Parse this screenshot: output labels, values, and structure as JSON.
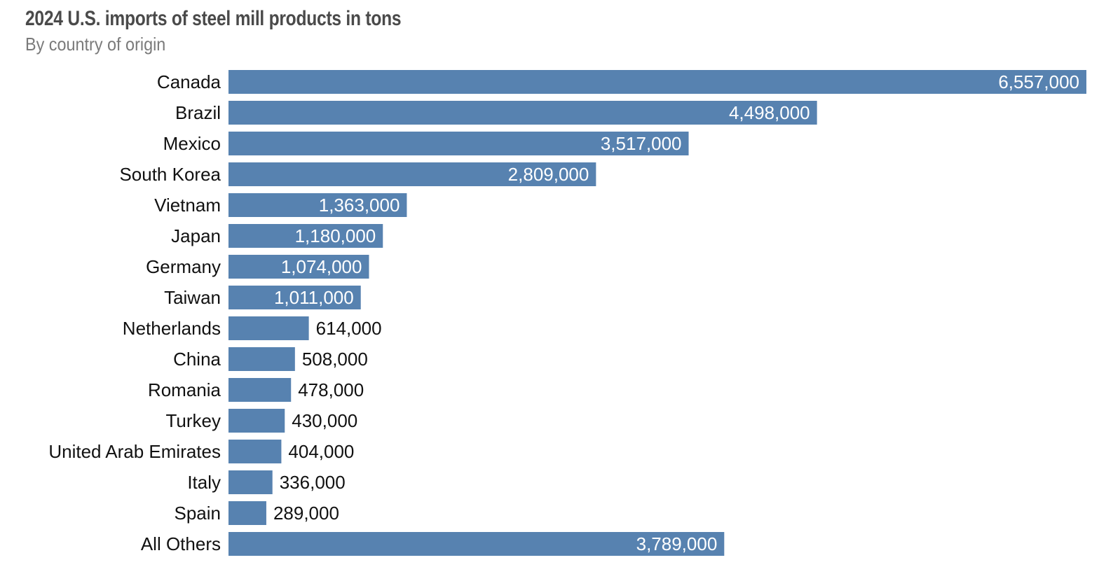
{
  "chart_data": {
    "type": "bar",
    "orientation": "horizontal",
    "title": "2024 U.S. imports of steel mill products in tons",
    "subtitle": "By country of origin",
    "categories": [
      "Canada",
      "Brazil",
      "Mexico",
      "South Korea",
      "Vietnam",
      "Japan",
      "Germany",
      "Taiwan",
      "Netherlands",
      "China",
      "Romania",
      "Turkey",
      "United Arab Emirates",
      "Italy",
      "Spain",
      "All Others"
    ],
    "values": [
      6557000,
      4498000,
      3517000,
      2809000,
      1363000,
      1180000,
      1074000,
      1011000,
      614000,
      508000,
      478000,
      430000,
      404000,
      336000,
      289000,
      3789000
    ],
    "value_labels": [
      "6,557,000",
      "4,498,000",
      "3,517,000",
      "2,809,000",
      "1,363,000",
      "1,180,000",
      "1,074,000",
      "1,011,000",
      "614,000",
      "508,000",
      "478,000",
      "430,000",
      "404,000",
      "336,000",
      "289,000",
      "3,789,000"
    ],
    "xlim": [
      0,
      6557000
    ],
    "grid": false,
    "colors": {
      "bar": "#5782b0",
      "label_inside": "#ffffff",
      "label_outside": "#111111"
    }
  }
}
